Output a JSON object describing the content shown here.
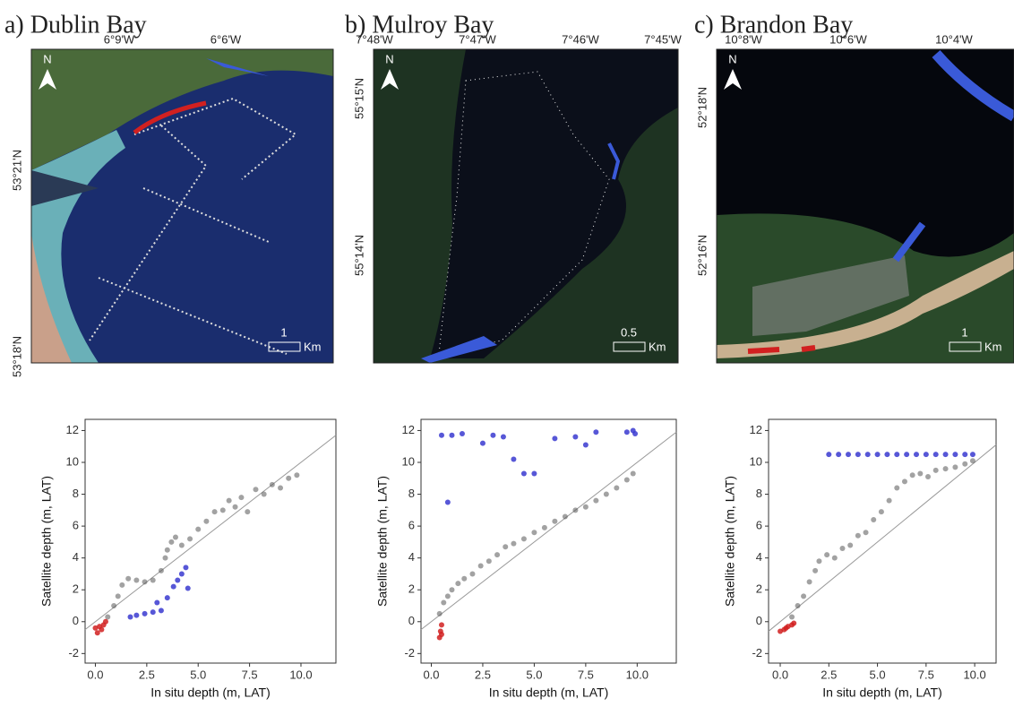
{
  "maps": [
    {
      "title": "a) Dublin Bay",
      "top_labels": [
        "6°9'W",
        "6°6'W"
      ],
      "left_labels": [
        "53°21'N",
        "53°18'N"
      ],
      "north": "N",
      "scale_value": "1",
      "scale_unit": "Km"
    },
    {
      "title": "b) Mulroy Bay",
      "top_labels": [
        "7°48'W",
        "7°47'W",
        "7°46'W",
        "7°45'W"
      ],
      "left_labels": [
        "55°15'N",
        "55°14'N"
      ],
      "north": "N",
      "scale_value": "0.5",
      "scale_unit": "Km"
    },
    {
      "title": "c) Brandon Bay",
      "top_labels": [
        "10°8'W",
        "10°6'W",
        "10°4'W"
      ],
      "left_labels": [
        "52°18'N",
        "52°16'N"
      ],
      "north": "N",
      "scale_value": "1",
      "scale_unit": "Km"
    }
  ],
  "chart_data": [
    {
      "type": "scatter",
      "x_label": "In situ depth (m, LAT)",
      "y_label": "Satellite depth (m, LAT)",
      "xlim": [
        -0.5,
        11.7
      ],
      "ylim": [
        -2.6,
        12.7
      ],
      "xticks": [
        {
          "value": 0,
          "label": "0.0"
        },
        2.5,
        {
          "value": 5,
          "label": "5.0"
        },
        7.5,
        {
          "value": 10,
          "label": "10.0"
        }
      ],
      "yticks": [
        -2,
        0,
        2,
        4,
        6,
        8,
        10,
        12
      ],
      "series": [
        {
          "color": "#555555",
          "x": [
            0.6,
            0.9,
            1.1,
            1.3,
            1.6,
            2.0,
            2.4,
            2.8,
            3.2,
            3.4,
            3.5,
            3.7,
            3.9,
            4.2,
            4.6,
            5.0,
            5.4,
            5.8,
            6.2,
            6.5,
            6.8,
            7.1,
            7.4,
            7.8,
            8.2,
            8.6,
            9.0,
            9.4,
            9.8
          ],
          "values": [
            0.3,
            1.0,
            1.6,
            2.3,
            2.7,
            2.6,
            2.5,
            2.6,
            3.2,
            4.0,
            4.5,
            5.0,
            5.3,
            4.8,
            5.2,
            5.8,
            6.3,
            6.9,
            7.0,
            7.6,
            7.2,
            7.8,
            6.9,
            8.3,
            8.0,
            8.6,
            8.4,
            9.0,
            9.2
          ]
        },
        {
          "color": "#3a3ad0",
          "x": [
            1.7,
            2.0,
            2.4,
            2.8,
            3.0,
            3.2,
            3.5,
            3.8,
            4.0,
            4.2,
            4.4,
            4.5
          ],
          "values": [
            0.3,
            0.4,
            0.5,
            0.6,
            1.2,
            0.7,
            1.5,
            2.2,
            2.6,
            3.0,
            3.4,
            2.1
          ]
        },
        {
          "color": "#d12020",
          "x": [
            0.0,
            0.1,
            0.2,
            0.3,
            0.4,
            0.5
          ],
          "values": [
            -0.4,
            -0.7,
            -0.3,
            -0.5,
            -0.2,
            0.0
          ]
        }
      ]
    },
    {
      "type": "scatter",
      "x_label": "In situ depth (m, LAT)",
      "y_label": "Satellite depth (m, LAT)",
      "xlim": [
        -0.5,
        11.9
      ],
      "ylim": [
        -2.6,
        12.7
      ],
      "xticks": [
        {
          "value": 0,
          "label": "0.0"
        },
        2.5,
        {
          "value": 5,
          "label": "5.0"
        },
        7.5,
        {
          "value": 10,
          "label": "10.0"
        }
      ],
      "yticks": [
        -2,
        0,
        2,
        4,
        6,
        8,
        10,
        12
      ],
      "series": [
        {
          "color": "#555555",
          "x": [
            0.4,
            0.6,
            0.8,
            1.0,
            1.3,
            1.6,
            2.0,
            2.4,
            2.8,
            3.2,
            3.6,
            4.0,
            4.5,
            5.0,
            5.5,
            6.0,
            6.5,
            7.0,
            7.5,
            8.0,
            8.5,
            9.0,
            9.5,
            9.8
          ],
          "values": [
            0.5,
            1.2,
            1.6,
            2.0,
            2.4,
            2.7,
            3.0,
            3.5,
            3.8,
            4.2,
            4.7,
            4.9,
            5.2,
            5.6,
            5.9,
            6.3,
            6.6,
            7.0,
            7.2,
            7.6,
            8.0,
            8.4,
            8.9,
            9.3
          ]
        },
        {
          "color": "#3a3ad0",
          "x": [
            0.5,
            1.0,
            1.5,
            0.8,
            2.5,
            3.0,
            3.5,
            4.0,
            4.5,
            5.0,
            6.0,
            7.0,
            7.5,
            8.0,
            9.5,
            9.8,
            9.9
          ],
          "values": [
            11.7,
            11.7,
            11.8,
            7.5,
            11.2,
            11.7,
            11.6,
            10.2,
            9.3,
            9.3,
            11.5,
            11.6,
            11.1,
            11.9,
            11.9,
            12.0,
            11.8
          ]
        },
        {
          "color": "#d12020",
          "x": [
            0.4,
            0.45,
            0.5,
            0.5
          ],
          "values": [
            -1.0,
            -0.6,
            -0.2,
            -0.8
          ]
        }
      ]
    },
    {
      "type": "scatter",
      "x_label": "In situ depth (m, LAT)",
      "y_label": "Satellite depth (m, LAT)",
      "xlim": [
        -0.6,
        11.1
      ],
      "ylim": [
        -2.6,
        12.7
      ],
      "xticks": [
        {
          "value": 0,
          "label": "0.0"
        },
        2.5,
        {
          "value": 5,
          "label": "5.0"
        },
        7.5,
        {
          "value": 10,
          "label": "10.0"
        }
      ],
      "yticks": [
        -2,
        0,
        2,
        4,
        6,
        8,
        10,
        12
      ],
      "series": [
        {
          "color": "#555555",
          "x": [
            0.6,
            0.9,
            1.2,
            1.5,
            1.8,
            2.0,
            2.4,
            2.8,
            3.2,
            3.6,
            4.0,
            4.4,
            4.8,
            5.2,
            5.6,
            6.0,
            6.4,
            6.8,
            7.2,
            7.6,
            8.0,
            8.5,
            9.0,
            9.5,
            9.9
          ],
          "values": [
            0.3,
            1.0,
            1.6,
            2.5,
            3.2,
            3.8,
            4.2,
            4.0,
            4.6,
            4.8,
            5.4,
            5.6,
            6.4,
            6.9,
            7.6,
            8.4,
            8.8,
            9.2,
            9.3,
            9.1,
            9.5,
            9.6,
            9.7,
            9.9,
            10.1
          ]
        },
        {
          "color": "#3a3ad0",
          "x": [
            2.5,
            3.0,
            3.5,
            4.0,
            4.5,
            5.0,
            5.5,
            6.0,
            6.5,
            7.0,
            7.5,
            8.0,
            8.5,
            9.0,
            9.5,
            9.9
          ],
          "values": [
            10.5,
            10.5,
            10.5,
            10.5,
            10.5,
            10.5,
            10.5,
            10.5,
            10.5,
            10.5,
            10.5,
            10.5,
            10.5,
            10.5,
            10.5,
            10.5
          ]
        },
        {
          "color": "#d12020",
          "x": [
            0.0,
            0.2,
            0.3,
            0.4,
            0.6,
            0.7
          ],
          "values": [
            -0.6,
            -0.5,
            -0.4,
            -0.3,
            -0.2,
            -0.1
          ]
        }
      ]
    }
  ]
}
